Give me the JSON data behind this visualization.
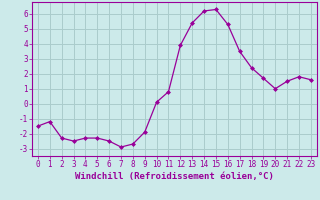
{
  "x": [
    0,
    1,
    2,
    3,
    4,
    5,
    6,
    7,
    8,
    9,
    10,
    11,
    12,
    13,
    14,
    15,
    16,
    17,
    18,
    19,
    20,
    21,
    22,
    23
  ],
  "y": [
    -1.5,
    -1.2,
    -2.3,
    -2.5,
    -2.3,
    -2.3,
    -2.5,
    -2.9,
    -2.7,
    -1.9,
    0.1,
    0.8,
    3.9,
    5.4,
    6.2,
    6.3,
    5.3,
    3.5,
    2.4,
    1.7,
    1.0,
    1.5,
    1.8,
    1.6
  ],
  "line_color": "#990099",
  "marker": "D",
  "marker_size": 2.0,
  "bg_color": "#cceaea",
  "grid_color": "#aacccc",
  "xlabel": "Windchill (Refroidissement éolien,°C)",
  "xlabel_color": "#990099",
  "tick_color": "#990099",
  "ylabel_ticks": [
    -3,
    -2,
    -1,
    0,
    1,
    2,
    3,
    4,
    5,
    6
  ],
  "xlim": [
    -0.5,
    23.5
  ],
  "ylim": [
    -3.5,
    6.8
  ],
  "spine_color": "#990099",
  "tick_fontsize": 5.5,
  "label_fontsize": 6.5
}
